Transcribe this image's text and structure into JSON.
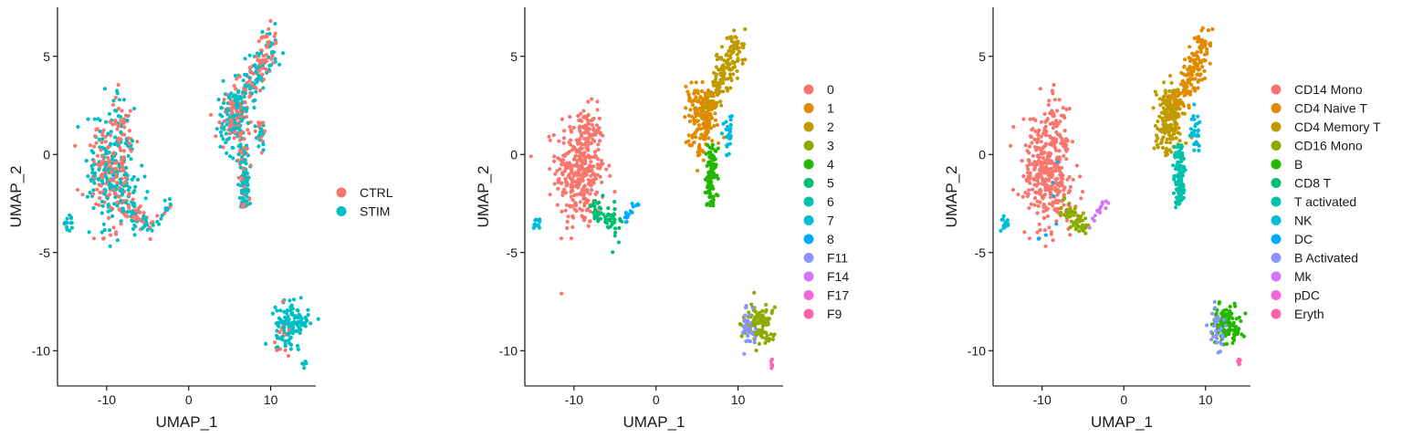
{
  "chart_data": [
    {
      "type": "scatter",
      "xlabel": "UMAP_1",
      "ylabel": "UMAP_2",
      "xlim": [
        -16,
        15.5
      ],
      "ylim": [
        -11.8,
        7.5
      ],
      "xticks": [
        -10,
        0,
        10
      ],
      "yticks": [
        5,
        0,
        -5,
        -10
      ],
      "xtick_labels": [
        "-10",
        "0",
        "10"
      ],
      "ytick_labels": [
        "5",
        "0",
        "-5",
        "-10"
      ],
      "grid": false,
      "legend_position": "right",
      "legend": [
        {
          "label": "CTRL",
          "color": "#F8766D"
        },
        {
          "label": "STIM",
          "color": "#00BFC4"
        }
      ]
    },
    {
      "type": "scatter",
      "xlabel": "UMAP_1",
      "ylabel": "UMAP_2",
      "xlim": [
        -16,
        15.5
      ],
      "ylim": [
        -11.8,
        7.5
      ],
      "xticks": [
        -10,
        0,
        10
      ],
      "yticks": [
        5,
        0,
        -5,
        -10
      ],
      "xtick_labels": [
        "-10",
        "0",
        "10"
      ],
      "ytick_labels": [
        "5",
        "0",
        "-5",
        "-10"
      ],
      "grid": false,
      "legend_position": "right",
      "legend": [
        {
          "label": "0",
          "color": "#F8766D"
        },
        {
          "label": "1",
          "color": "#E18A00"
        },
        {
          "label": "2",
          "color": "#BE9C00"
        },
        {
          "label": "3",
          "color": "#8CAB00"
        },
        {
          "label": "4",
          "color": "#24B700"
        },
        {
          "label": "5",
          "color": "#00BE70"
        },
        {
          "label": "6",
          "color": "#00C1AB"
        },
        {
          "label": "7",
          "color": "#00BBDA"
        },
        {
          "label": "8",
          "color": "#00ACFC"
        },
        {
          "label": "F11",
          "color": "#8B93FF"
        },
        {
          "label": "F14",
          "color": "#D575FE"
        },
        {
          "label": "F17",
          "color": "#F962DD"
        },
        {
          "label": "F9",
          "color": "#FF65AC"
        }
      ]
    },
    {
      "type": "scatter",
      "xlabel": "UMAP_1",
      "ylabel": "UMAP_2",
      "xlim": [
        -16,
        15.5
      ],
      "ylim": [
        -11.8,
        7.5
      ],
      "xticks": [
        -10,
        0,
        10
      ],
      "yticks": [
        5,
        0,
        -5,
        -10
      ],
      "xtick_labels": [
        "-10",
        "0",
        "10"
      ],
      "ytick_labels": [
        "5",
        "0",
        "-5",
        "-10"
      ],
      "grid": false,
      "legend_position": "right",
      "legend": [
        {
          "label": "CD14 Mono",
          "color": "#F8766D"
        },
        {
          "label": "CD4 Naive T",
          "color": "#E18A00"
        },
        {
          "label": "CD4 Memory T",
          "color": "#BE9C00"
        },
        {
          "label": "CD16 Mono",
          "color": "#8CAB00"
        },
        {
          "label": "B",
          "color": "#24B700"
        },
        {
          "label": "CD8 T",
          "color": "#00BE70"
        },
        {
          "label": "T activated",
          "color": "#00C1AB"
        },
        {
          "label": "NK",
          "color": "#00BBDA"
        },
        {
          "label": "DC",
          "color": "#00ACFC"
        },
        {
          "label": "B Activated",
          "color": "#8B93FF"
        },
        {
          "label": "Mk",
          "color": "#D575FE"
        },
        {
          "label": "pDC",
          "color": "#F962DD"
        },
        {
          "label": "Eryth",
          "color": "#FF65AC"
        }
      ]
    }
  ]
}
